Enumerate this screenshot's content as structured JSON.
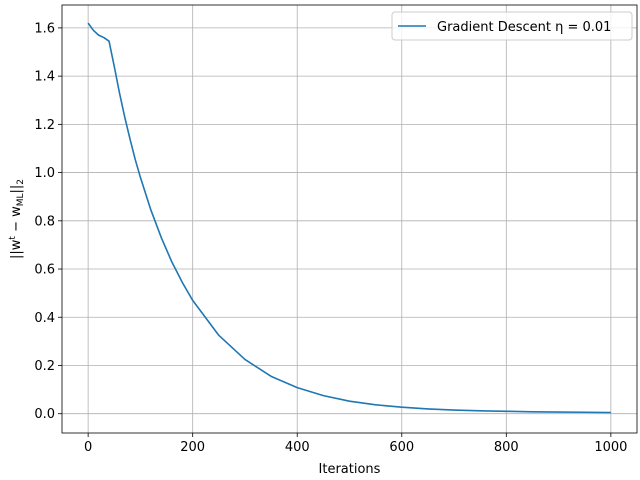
{
  "chart_data": {
    "type": "line",
    "xlabel": "Iterations",
    "ylabel_parts": {
      "open": "||w",
      "sup": "t",
      "mid": " − w",
      "sub": "ML",
      "close": "||",
      "sub2": "2"
    },
    "xlim": [
      -50,
      1050
    ],
    "ylim": [
      -0.08,
      1.695
    ],
    "x_ticks": [
      0,
      200,
      400,
      600,
      800,
      1000
    ],
    "x_tick_labels": [
      "0",
      "200",
      "400",
      "600",
      "800",
      "1000"
    ],
    "y_ticks": [
      0.0,
      0.2,
      0.4,
      0.6,
      0.8,
      1.0,
      1.2,
      1.4,
      1.6
    ],
    "y_tick_labels": [
      "0.0",
      "0.2",
      "0.4",
      "0.6",
      "0.8",
      "1.0",
      "1.2",
      "1.4",
      "1.6"
    ],
    "grid": true,
    "legend_position": "top-right",
    "legend_label": "Gradient Descent η = 0.01",
    "series": [
      {
        "name": "Gradient Descent η = 0.01",
        "color": "#1f77b4",
        "x": [
          0,
          10,
          20,
          30,
          40,
          50,
          60,
          70,
          80,
          90,
          100,
          120,
          140,
          160,
          180,
          200,
          250,
          300,
          350,
          400,
          450,
          500,
          550,
          600,
          650,
          700,
          750,
          800,
          850,
          900,
          950,
          1000
        ],
        "y": [
          1.62,
          1.59,
          1.57,
          1.56,
          1.545,
          1.44,
          1.33,
          1.23,
          1.14,
          1.055,
          0.98,
          0.845,
          0.73,
          0.63,
          0.545,
          0.47,
          0.325,
          0.225,
          0.155,
          0.108,
          0.075,
          0.052,
          0.037,
          0.027,
          0.02,
          0.015,
          0.012,
          0.01,
          0.008,
          0.007,
          0.006,
          0.005
        ]
      }
    ]
  }
}
